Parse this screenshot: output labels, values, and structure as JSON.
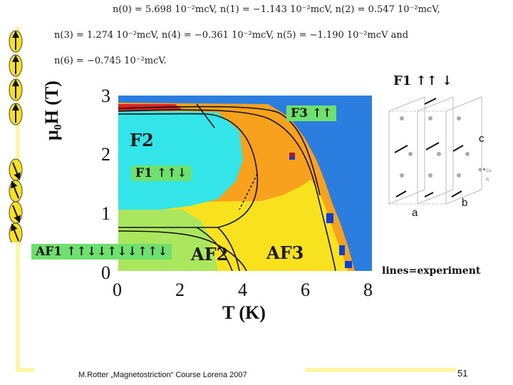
{
  "formulas": {
    "line1": "n(0) = 5.698 10⁻²mcV, n(1) = −1.143 10⁻²mcV, n(2) = 0.547 10⁻²mcV,",
    "line2": "n(3) = 1.274 10⁻²mcV, n(4) = −0.361 10⁻²mcV, n(5) = −1.190 10⁻²mcV and",
    "line3": "n(6) = −0.745 10⁻²mcV."
  },
  "chart": {
    "ylabel": "μ₀H (T)",
    "xlabel": "T (K)",
    "x_ticks": [
      "0",
      "2",
      "4",
      "6",
      "8"
    ],
    "y_ticks": [
      "0",
      "1",
      "2",
      "3"
    ],
    "phase_F2": "F2",
    "phase_AF2": "AF2",
    "phase_AF3": "AF3",
    "label_F3": "F3 ↑↑",
    "label_F1": "F1 ↑↑↓",
    "label_AF1": "AF1 ↑↑↓↓↑↓↓↑↑↓",
    "top_F1": "F1 ↑↑ ↓"
  },
  "crystal": {
    "axis_a": "a",
    "axis_b": "b",
    "axis_c": "c",
    "legend_1": "Cu",
    "legend_2": "R"
  },
  "lines_note": "lines=experiment",
  "footer_text": "M.Rotter „Magnetostriction“ Course Lorena 2007",
  "page_number": "51",
  "colors": {
    "blue": "#2b7de0",
    "cyan": "#33e4e8",
    "yellow": "#f8e21e",
    "orange": "#f8a11c",
    "red": "#e0211f",
    "green": "#6ee06e",
    "accent_bar": "#fcf6a4"
  }
}
